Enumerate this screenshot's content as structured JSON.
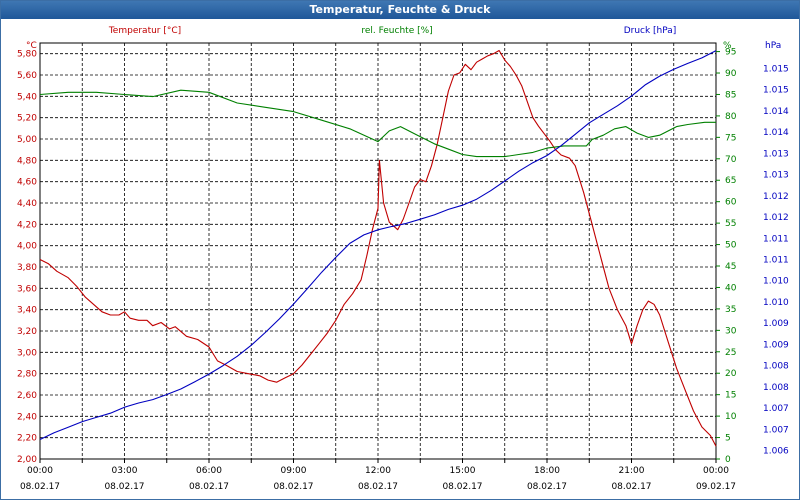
{
  "window": {
    "title": "Temperatur, Feuchte & Druck"
  },
  "chart_data": {
    "type": "line",
    "title": "Temperatur, Feuchte & Druck",
    "x_ticks": [
      {
        "time": "00:00",
        "date": "08.02.17"
      },
      {
        "time": "03:00",
        "date": "08.02.17"
      },
      {
        "time": "06:00",
        "date": "08.02.17"
      },
      {
        "time": "09:00",
        "date": "08.02.17"
      },
      {
        "time": "12:00",
        "date": "08.02.17"
      },
      {
        "time": "15:00",
        "date": "08.02.17"
      },
      {
        "time": "18:00",
        "date": "08.02.17"
      },
      {
        "time": "21:00",
        "date": "08.02.17"
      },
      {
        "time": "00:00",
        "date": "09.02.17"
      }
    ],
    "x_range_hours": [
      0,
      24
    ],
    "axes": {
      "left": {
        "unit": "°C",
        "min": 2.0,
        "max": 5.9,
        "ticks": [
          "2,00",
          "2,20",
          "2,40",
          "2,60",
          "2,80",
          "3,00",
          "3,20",
          "3,40",
          "3,60",
          "3,80",
          "4,00",
          "4,20",
          "4,40",
          "4,60",
          "4,80",
          "5,00",
          "5,20",
          "5,40",
          "5,60",
          "5,80"
        ]
      },
      "middle": {
        "unit": "%",
        "min": 0,
        "max": 97,
        "ticks": [
          "0",
          "5",
          "10",
          "15",
          "20",
          "25",
          "30",
          "35",
          "40",
          "45",
          "50",
          "55",
          "60",
          "65",
          "70",
          "75",
          "80",
          "85",
          "90",
          "95"
        ]
      },
      "right": {
        "unit": "hPa",
        "min": 1005.8,
        "max": 1015.6,
        "ticks": [
          "1.006",
          "1.007",
          "1.007",
          "1.008",
          "1.008",
          "1.009",
          "1.009",
          "1.010",
          "1.010",
          "1.011",
          "1.011",
          "1.012",
          "1.012",
          "1.013",
          "1.013",
          "1.014",
          "1.014",
          "1.015",
          "1.015"
        ]
      }
    },
    "series": [
      {
        "name": "Temperatur [°C]",
        "color": "#c00000",
        "axis": "left",
        "points": [
          [
            0,
            3.87
          ],
          [
            0.3,
            3.83
          ],
          [
            0.6,
            3.76
          ],
          [
            1.0,
            3.7
          ],
          [
            1.3,
            3.62
          ],
          [
            1.6,
            3.52
          ],
          [
            1.9,
            3.45
          ],
          [
            2.2,
            3.38
          ],
          [
            2.5,
            3.35
          ],
          [
            2.8,
            3.35
          ],
          [
            3.0,
            3.38
          ],
          [
            3.2,
            3.32
          ],
          [
            3.5,
            3.3
          ],
          [
            3.8,
            3.3
          ],
          [
            4.0,
            3.25
          ],
          [
            4.3,
            3.28
          ],
          [
            4.6,
            3.22
          ],
          [
            4.8,
            3.24
          ],
          [
            5.2,
            3.15
          ],
          [
            5.6,
            3.12
          ],
          [
            6.0,
            3.05
          ],
          [
            6.3,
            2.92
          ],
          [
            6.6,
            2.88
          ],
          [
            7.0,
            2.82
          ],
          [
            7.4,
            2.8
          ],
          [
            7.8,
            2.78
          ],
          [
            8.1,
            2.74
          ],
          [
            8.4,
            2.72
          ],
          [
            8.7,
            2.76
          ],
          [
            9.0,
            2.8
          ],
          [
            9.3,
            2.88
          ],
          [
            9.6,
            2.98
          ],
          [
            9.9,
            3.08
          ],
          [
            10.2,
            3.18
          ],
          [
            10.5,
            3.3
          ],
          [
            10.8,
            3.45
          ],
          [
            11.1,
            3.55
          ],
          [
            11.4,
            3.68
          ],
          [
            11.6,
            3.9
          ],
          [
            11.8,
            4.15
          ],
          [
            12.0,
            4.35
          ],
          [
            12.05,
            4.8
          ],
          [
            12.2,
            4.4
          ],
          [
            12.4,
            4.22
          ],
          [
            12.7,
            4.15
          ],
          [
            12.9,
            4.25
          ],
          [
            13.1,
            4.4
          ],
          [
            13.3,
            4.55
          ],
          [
            13.5,
            4.62
          ],
          [
            13.7,
            4.6
          ],
          [
            13.9,
            4.75
          ],
          [
            14.1,
            4.95
          ],
          [
            14.3,
            5.2
          ],
          [
            14.5,
            5.45
          ],
          [
            14.7,
            5.6
          ],
          [
            14.9,
            5.62
          ],
          [
            15.1,
            5.7
          ],
          [
            15.3,
            5.65
          ],
          [
            15.5,
            5.72
          ],
          [
            15.7,
            5.75
          ],
          [
            15.9,
            5.78
          ],
          [
            16.1,
            5.8
          ],
          [
            16.3,
            5.83
          ],
          [
            16.5,
            5.74
          ],
          [
            16.7,
            5.68
          ],
          [
            16.9,
            5.6
          ],
          [
            17.1,
            5.5
          ],
          [
            17.3,
            5.35
          ],
          [
            17.5,
            5.2
          ],
          [
            17.7,
            5.12
          ],
          [
            17.9,
            5.05
          ],
          [
            18.1,
            4.98
          ],
          [
            18.3,
            4.9
          ],
          [
            18.5,
            4.85
          ],
          [
            18.8,
            4.82
          ],
          [
            19.0,
            4.75
          ],
          [
            19.3,
            4.5
          ],
          [
            19.6,
            4.2
          ],
          [
            19.9,
            3.9
          ],
          [
            20.2,
            3.6
          ],
          [
            20.5,
            3.4
          ],
          [
            20.8,
            3.25
          ],
          [
            21.0,
            3.08
          ],
          [
            21.2,
            3.25
          ],
          [
            21.4,
            3.4
          ],
          [
            21.6,
            3.48
          ],
          [
            21.8,
            3.45
          ],
          [
            22.0,
            3.35
          ],
          [
            22.3,
            3.1
          ],
          [
            22.6,
            2.85
          ],
          [
            22.9,
            2.65
          ],
          [
            23.2,
            2.45
          ],
          [
            23.5,
            2.3
          ],
          [
            23.8,
            2.22
          ],
          [
            24.0,
            2.12
          ]
        ]
      },
      {
        "name": "rel. Feuchte [%]",
        "color": "#008000",
        "axis": "middle",
        "points": [
          [
            0,
            85
          ],
          [
            1.0,
            85.5
          ],
          [
            2.0,
            85.5
          ],
          [
            3.0,
            85
          ],
          [
            4.0,
            84.5
          ],
          [
            5.0,
            86
          ],
          [
            6.0,
            85.5
          ],
          [
            7.0,
            83
          ],
          [
            8.0,
            82
          ],
          [
            9.0,
            81
          ],
          [
            10.0,
            79
          ],
          [
            11.0,
            77
          ],
          [
            12.0,
            74
          ],
          [
            12.4,
            76.5
          ],
          [
            12.8,
            77.5
          ],
          [
            13.4,
            75.5
          ],
          [
            14.0,
            73.5
          ],
          [
            14.6,
            72
          ],
          [
            15.0,
            71
          ],
          [
            15.5,
            70.5
          ],
          [
            16.0,
            70.5
          ],
          [
            16.5,
            70.5
          ],
          [
            17.0,
            71
          ],
          [
            17.5,
            71.5
          ],
          [
            18.0,
            72.5
          ],
          [
            18.6,
            73
          ],
          [
            19.0,
            73
          ],
          [
            19.4,
            73
          ],
          [
            19.6,
            74.5
          ],
          [
            20.0,
            75.5
          ],
          [
            20.4,
            77
          ],
          [
            20.8,
            77.5
          ],
          [
            21.2,
            76
          ],
          [
            21.6,
            75
          ],
          [
            22.0,
            75.5
          ],
          [
            22.6,
            77.5
          ],
          [
            23.0,
            78
          ],
          [
            23.6,
            78.5
          ],
          [
            24.0,
            78.5
          ]
        ]
      },
      {
        "name": "Druck [hPa]",
        "color": "#0000c0",
        "axis": "right",
        "points": [
          [
            0,
            1006.26
          ],
          [
            0.5,
            1006.42
          ],
          [
            1.0,
            1006.55
          ],
          [
            1.5,
            1006.68
          ],
          [
            2.0,
            1006.78
          ],
          [
            2.5,
            1006.88
          ],
          [
            3.0,
            1007.02
          ],
          [
            3.5,
            1007.12
          ],
          [
            4.0,
            1007.2
          ],
          [
            4.5,
            1007.32
          ],
          [
            5.0,
            1007.45
          ],
          [
            5.5,
            1007.62
          ],
          [
            6.0,
            1007.8
          ],
          [
            6.5,
            1008.0
          ],
          [
            7.0,
            1008.22
          ],
          [
            7.5,
            1008.48
          ],
          [
            8.0,
            1008.78
          ],
          [
            8.5,
            1009.1
          ],
          [
            9.0,
            1009.45
          ],
          [
            9.5,
            1009.82
          ],
          [
            10.0,
            1010.2
          ],
          [
            10.5,
            1010.55
          ],
          [
            11.0,
            1010.88
          ],
          [
            11.5,
            1011.08
          ],
          [
            12.0,
            1011.2
          ],
          [
            12.5,
            1011.28
          ],
          [
            13.0,
            1011.35
          ],
          [
            13.5,
            1011.45
          ],
          [
            14.0,
            1011.55
          ],
          [
            14.5,
            1011.68
          ],
          [
            15.0,
            1011.78
          ],
          [
            15.5,
            1011.92
          ],
          [
            16.0,
            1012.12
          ],
          [
            16.5,
            1012.35
          ],
          [
            17.0,
            1012.58
          ],
          [
            17.5,
            1012.78
          ],
          [
            18.0,
            1012.95
          ],
          [
            18.5,
            1013.18
          ],
          [
            19.0,
            1013.45
          ],
          [
            19.5,
            1013.72
          ],
          [
            20.0,
            1013.92
          ],
          [
            20.5,
            1014.12
          ],
          [
            21.0,
            1014.35
          ],
          [
            21.5,
            1014.62
          ],
          [
            22.0,
            1014.82
          ],
          [
            22.5,
            1014.98
          ],
          [
            23.0,
            1015.12
          ],
          [
            23.5,
            1015.25
          ],
          [
            24.0,
            1015.42
          ]
        ]
      }
    ],
    "legend": {
      "temp": "Temperatur [°C]",
      "hum": "rel. Feuchte [%]",
      "press": "Druck [hPa]"
    },
    "colors": {
      "temp": "#c00000",
      "hum": "#008000",
      "press": "#0000c0",
      "grid": "#000000",
      "titlebar": "#2b64a6"
    }
  }
}
